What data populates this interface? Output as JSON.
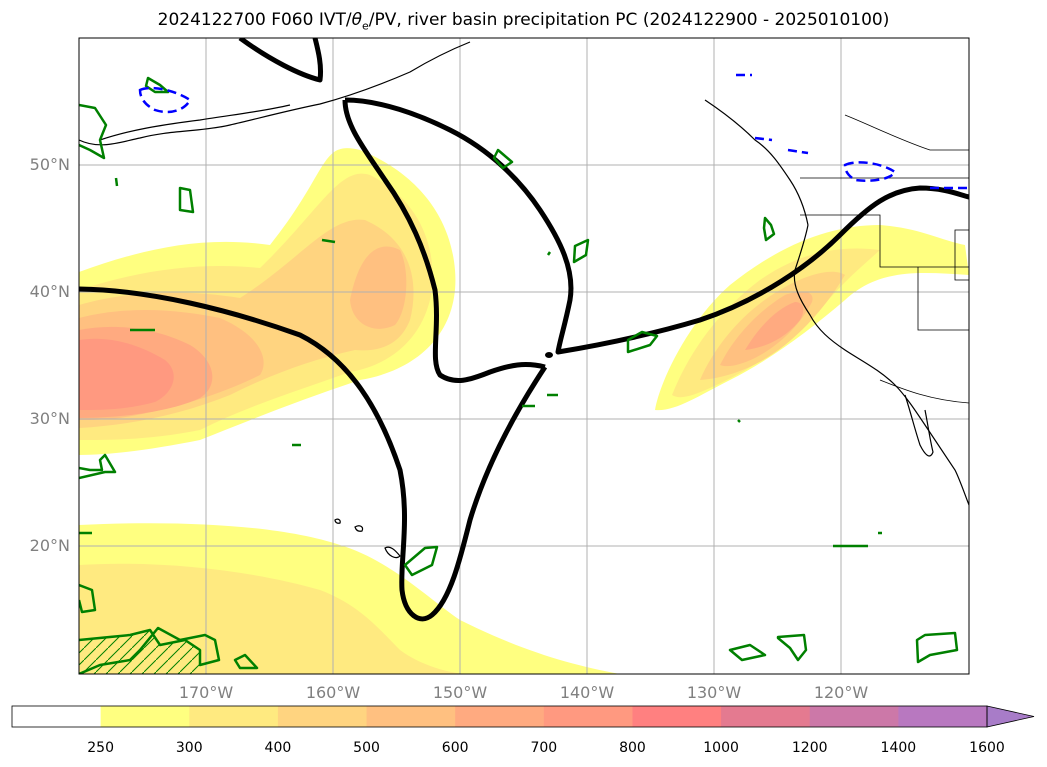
{
  "title": {
    "prefix": "2024122700 F060 IVT/",
    "theta": "θ",
    "theta_sub": "e",
    "suffix": "/PV, river basin precipitation PC (2024122900 - 2025010100)"
  },
  "map_extent": {
    "lon": [
      -180,
      -110
    ],
    "lat": [
      10,
      60
    ]
  },
  "lat_labels": [
    {
      "lat": 50,
      "text": "50°N"
    },
    {
      "lat": 40,
      "text": "40°N"
    },
    {
      "lat": 30,
      "text": "30°N"
    },
    {
      "lat": 20,
      "text": "20°N"
    }
  ],
  "lon_labels": [
    {
      "lon": -170,
      "text": "170°W"
    },
    {
      "lon": -160,
      "text": "160°W"
    },
    {
      "lon": -150,
      "text": "150°W"
    },
    {
      "lon": -140,
      "text": "140°W"
    },
    {
      "lon": -130,
      "text": "130°W"
    },
    {
      "lon": -120,
      "text": "120°W"
    }
  ],
  "colorbar": {
    "levels": [
      "250",
      "300",
      "400",
      "500",
      "600",
      "700",
      "800",
      "1000",
      "1200",
      "1400",
      "1600"
    ],
    "colors": [
      "#ffffff",
      "#ffff80",
      "#ffea80",
      "#ffd480",
      "#ffc080",
      "#ffaa80",
      "#ff9980",
      "#ff8080",
      "#e47a90",
      "#cc78a8",
      "#b878c0",
      "#a87cc8"
    ],
    "extend": "max"
  },
  "legend_colors": {
    "ivt_contour": "#000000",
    "theta_e": "#008000",
    "pv": "#0000ff",
    "grid": "#b0b0b0",
    "coast": "#000000"
  }
}
